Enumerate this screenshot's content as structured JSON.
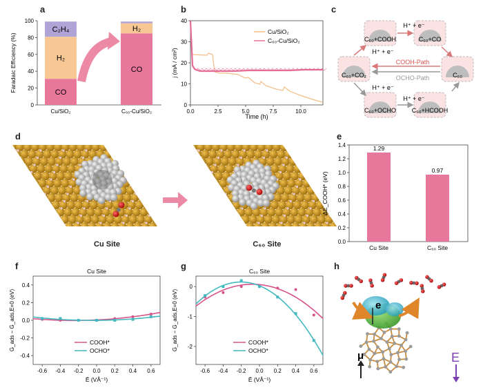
{
  "panels": {
    "a": "a",
    "b": "b",
    "c": "c",
    "d": "d",
    "e": "e",
    "f": "f",
    "g": "g",
    "h": "h"
  },
  "panel_a": {
    "ylabel": "Faradaic Efficiency (%)",
    "yticks": [
      "0",
      "20",
      "40",
      "60",
      "80",
      "100"
    ],
    "categories": [
      "Cu/SiO₂",
      "C₆₀-Cu/SiO₂"
    ],
    "bars": [
      {
        "segments": [
          {
            "name": "CO",
            "value": 31
          },
          {
            "name": "H₂",
            "value": 50
          },
          {
            "name": "C₂H₄",
            "value": 18
          }
        ]
      },
      {
        "segments": [
          {
            "name": "CO",
            "value": 85
          },
          {
            "name": "H₂",
            "value": 12
          },
          {
            "name": "C₂H₄",
            "value": 2
          }
        ]
      }
    ],
    "labels": {
      "co": "CO",
      "h2": "H₂",
      "c2h4": "C₂H₄"
    },
    "colors": {
      "CO": "#e8779c",
      "H2": "#f7c894",
      "C2H4": "#b0a3d6"
    }
  },
  "panel_b": {
    "ylabel": "j (mA / cm²)",
    "xlabel": "Time (h)",
    "xticks": [
      "0.0",
      "2.5",
      "5.0",
      "7.5",
      "10.0"
    ],
    "yticks": [
      "0",
      "10",
      "20",
      "30",
      "40"
    ],
    "legend": [
      "Cu/SiO₂",
      "C₆₀-Cu/SiO₂"
    ],
    "colors": {
      "cu": "#f3bd86",
      "c60": "#e46a98"
    }
  },
  "panel_c": {
    "nodes": [
      "C₆₀+COOH",
      "C₆₀+CO",
      "C₆₀+CO₂",
      "C₆₀",
      "C₆₀+OCHO",
      "C₆₀+HCOOH"
    ],
    "steps": [
      "H⁺ + e⁻",
      "H⁺ + e⁻",
      "H⁺ + e⁻",
      "H⁺ + e⁻"
    ],
    "paths": {
      "cooh": "COOH-Path",
      "ocho": "OCHO-Path"
    }
  },
  "panel_d": {
    "left": "Cu Site",
    "right": "C₆₀ Site"
  },
  "panel_e": {
    "ylabel": "ΔE_COOH* (eV)",
    "yticks": [
      "0.0",
      "0.2",
      "0.4",
      "0.6",
      "0.8",
      "1.0",
      "1.2",
      "1.4"
    ],
    "categories": [
      "Cu Site",
      "C₆₀ Site"
    ],
    "values": [
      1.29,
      0.97
    ],
    "value_labels": [
      "1.29",
      "0.97"
    ],
    "color": "#e8779c"
  },
  "panel_f": {
    "title": "Cu Site",
    "ylabel": "G_ads − G_ads,E=0 (eV)",
    "xlabel": "Ē (VÅ⁻¹)",
    "xticks": [
      "-0.6",
      "-0.4",
      "-0.2",
      "0.0",
      "0.2",
      "0.4",
      "0.6"
    ],
    "yticks": [
      "0.4",
      "0.2",
      "0.0",
      "-0.2",
      "-0.4"
    ],
    "legend": [
      "COOH*",
      "OCHO*"
    ],
    "cooh_points": [
      [
        -0.6,
        0.01
      ],
      [
        -0.4,
        0.0
      ],
      [
        -0.2,
        0.0
      ],
      [
        0.0,
        0.0
      ],
      [
        0.2,
        0.02
      ],
      [
        0.4,
        0.04
      ],
      [
        0.6,
        0.07
      ]
    ],
    "ocho_points": [
      [
        -0.6,
        0.02
      ],
      [
        -0.4,
        0.02
      ],
      [
        -0.2,
        0.0
      ],
      [
        0.0,
        0.0
      ],
      [
        0.2,
        0.0
      ],
      [
        0.4,
        0.01
      ],
      [
        0.6,
        0.04
      ]
    ]
  },
  "panel_g": {
    "title": "C₆₀ Site",
    "ylabel": "G_ads − G_ads,E=0 (eV)",
    "xlabel": "Ē (VÅ⁻¹)",
    "xticks": [
      "-0.6",
      "-0.4",
      "-0.2",
      "0.0",
      "0.2",
      "0.4",
      "0.6"
    ],
    "yticks": [
      "0",
      "-1",
      "-2"
    ],
    "legend": [
      "COOH*",
      "OCHO*"
    ],
    "cooh_points": [
      [
        -0.6,
        -0.35
      ],
      [
        -0.4,
        -0.2
      ],
      [
        -0.2,
        0.0
      ],
      [
        0.0,
        0.0
      ],
      [
        0.2,
        -0.05
      ],
      [
        0.4,
        -0.1
      ],
      [
        0.6,
        -0.95
      ]
    ],
    "ocho_points": [
      [
        -0.6,
        -0.3
      ],
      [
        -0.4,
        0.0
      ],
      [
        -0.2,
        0.2
      ],
      [
        0.0,
        0.0
      ],
      [
        0.2,
        -0.35
      ],
      [
        0.4,
        -0.9
      ],
      [
        0.6,
        -1.8
      ]
    ]
  },
  "panel_h": {
    "e_label": "e",
    "mu": "μ",
    "E": "E"
  },
  "colors": {
    "pink": "#d6528a",
    "teal": "#44b9bf",
    "gold": "#c8901a",
    "gray": "#b5b5b5"
  }
}
